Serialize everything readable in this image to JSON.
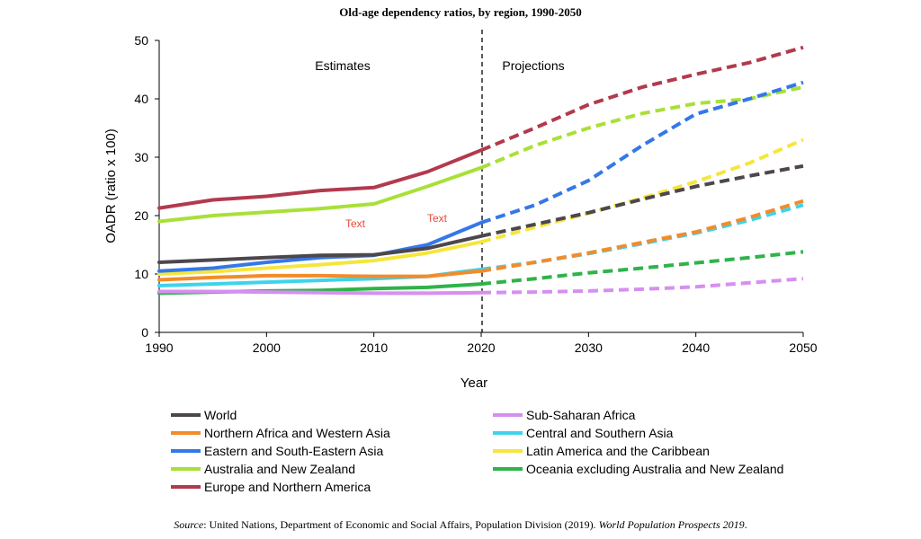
{
  "chart_data": {
    "type": "line",
    "title": "Old-age dependency ratios, by region, 1990-2050",
    "xlabel": "Year",
    "ylabel": "OADR (ratio x 100)",
    "xlim": [
      1990,
      2050
    ],
    "ylim": [
      0,
      50
    ],
    "xticks": [
      1990,
      2000,
      2010,
      2020,
      2030,
      2040,
      2050
    ],
    "yticks": [
      0,
      10,
      20,
      30,
      40,
      50
    ],
    "divider_x": 2020,
    "period_labels": {
      "estimates": "Estimates",
      "projections": "Projections"
    },
    "stray_labels": [
      "Text",
      "Text"
    ],
    "estimate_years": [
      1990,
      1995,
      2000,
      2005,
      2010,
      2015,
      2020
    ],
    "projection_years": [
      2020,
      2025,
      2030,
      2035,
      2040,
      2045,
      2050
    ],
    "series": [
      {
        "name": "World",
        "color": "#4d474d",
        "estimates": [
          12.0,
          12.4,
          12.8,
          13.2,
          13.3,
          14.4,
          16.5
        ],
        "projections": [
          16.5,
          18.5,
          20.5,
          22.8,
          25.0,
          26.8,
          28.5
        ]
      },
      {
        "name": "Northern Africa and Western Asia",
        "color": "#f28c2a",
        "estimates": [
          9.0,
          9.4,
          9.7,
          9.7,
          9.6,
          9.6,
          10.5
        ],
        "projections": [
          10.5,
          12.0,
          13.6,
          15.4,
          17.2,
          19.7,
          22.5
        ]
      },
      {
        "name": "Eastern and South-Eastern Asia",
        "color": "#3478e8",
        "estimates": [
          10.5,
          11.0,
          12.0,
          12.8,
          13.2,
          15.0,
          18.8
        ],
        "projections": [
          18.8,
          21.8,
          26.0,
          32.0,
          37.4,
          40.0,
          42.8
        ]
      },
      {
        "name": "Australia and New Zealand",
        "color": "#a9e038",
        "estimates": [
          19.0,
          20.0,
          20.6,
          21.2,
          22.0,
          25.0,
          28.2
        ],
        "projections": [
          28.2,
          32.0,
          35.0,
          37.5,
          39.2,
          40.0,
          42.0
        ]
      },
      {
        "name": "Europe and Northern America",
        "color": "#b23a4e",
        "estimates": [
          21.3,
          22.7,
          23.3,
          24.3,
          24.8,
          27.5,
          31.2
        ],
        "projections": [
          31.2,
          35.0,
          39.0,
          42.0,
          44.2,
          46.2,
          48.8
        ]
      },
      {
        "name": "Sub-Saharan Africa",
        "color": "#d68ff0",
        "estimates": [
          7.0,
          7.0,
          6.9,
          6.8,
          6.7,
          6.7,
          6.8
        ],
        "projections": [
          6.8,
          6.9,
          7.1,
          7.4,
          7.8,
          8.5,
          9.2
        ]
      },
      {
        "name": "Central and Southern Asia",
        "color": "#3fd3ec",
        "estimates": [
          8.0,
          8.3,
          8.6,
          8.9,
          9.2,
          9.6,
          10.8
        ],
        "projections": [
          10.8,
          12.0,
          13.5,
          15.2,
          17.0,
          19.2,
          21.8
        ]
      },
      {
        "name": "Latin America and the Caribbean",
        "color": "#f5e63c",
        "estimates": [
          10.0,
          10.4,
          11.0,
          11.6,
          12.3,
          13.6,
          15.5
        ],
        "projections": [
          15.5,
          18.0,
          20.4,
          23.0,
          25.8,
          29.0,
          33.0
        ]
      },
      {
        "name": "Oceania excluding Australia and New Zealand",
        "color": "#2fb34a",
        "estimates": [
          6.7,
          6.9,
          7.1,
          7.2,
          7.5,
          7.7,
          8.3
        ],
        "projections": [
          8.3,
          9.2,
          10.2,
          11.0,
          11.9,
          12.8,
          13.8
        ]
      }
    ]
  },
  "source": {
    "prefix": "Source",
    "text": ": United Nations, Department of Economic and Social Affairs, Population Division (2019). ",
    "publication": "World Population Prospects 2019",
    "suffix": "."
  }
}
